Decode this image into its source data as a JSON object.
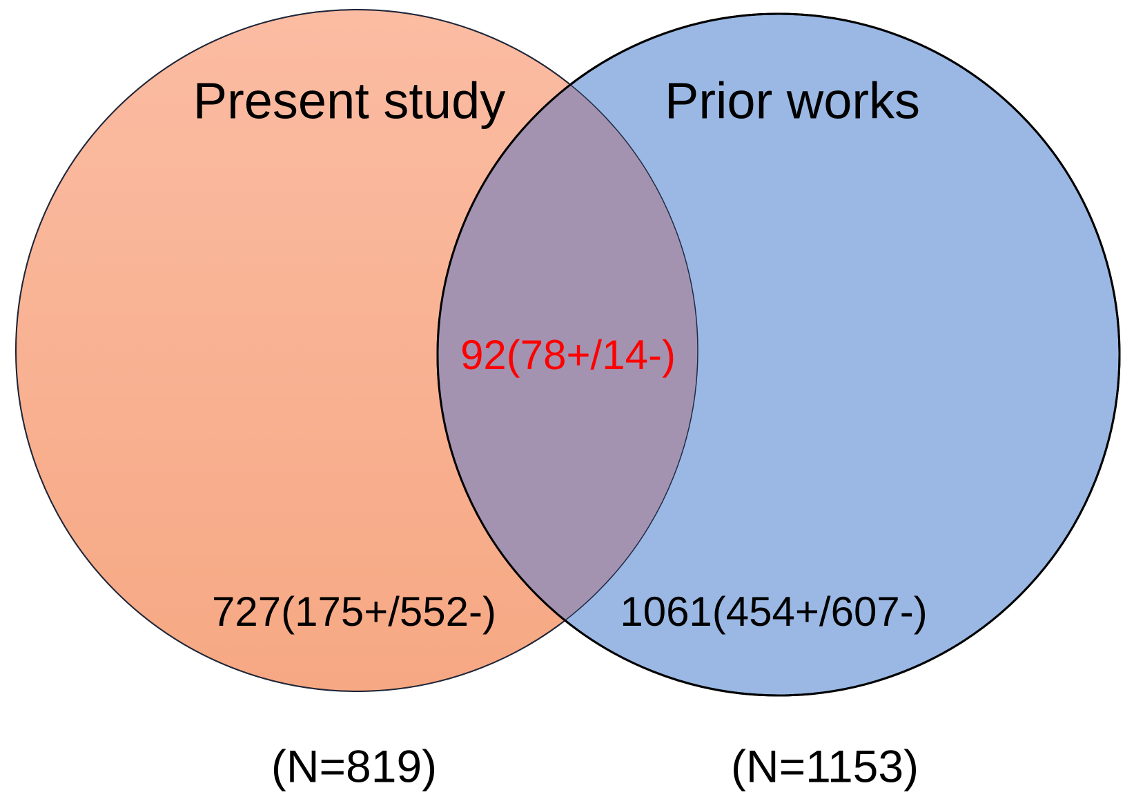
{
  "sets": [
    {
      "label": "Present study",
      "only": "727(175+/552-)",
      "total": "(N=819)"
    },
    {
      "label": "Prior works",
      "only": "1061(454+/607-)",
      "total": "(N=1153)"
    }
  ],
  "intersection": "92(78+/14-)"
}
